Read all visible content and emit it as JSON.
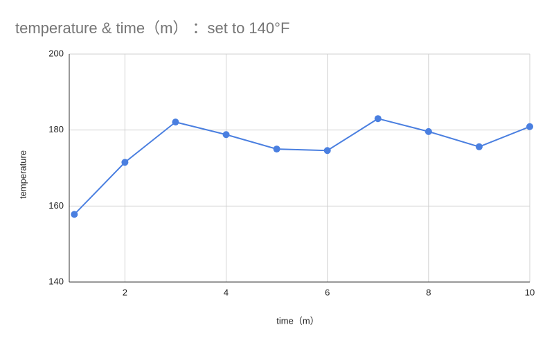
{
  "chart_data": {
    "type": "line",
    "title": "temperature & time（m） ：set to 140°F",
    "x_label": "time（m）",
    "y_label": "temperature",
    "x": [
      1,
      2,
      3,
      4,
      5,
      6,
      7,
      8,
      9,
      10
    ],
    "series": [
      {
        "name": "temperature",
        "color": "#4a7fe0",
        "values": [
          157.8,
          171.5,
          182.1,
          178.8,
          175.0,
          174.6,
          183.0,
          179.6,
          175.6,
          180.9
        ]
      }
    ],
    "xlim": [
      0.9,
      10
    ],
    "xticks": [
      2,
      4,
      6,
      8,
      10
    ],
    "ylim": [
      140,
      200
    ],
    "yticks": [
      140,
      160,
      180,
      200
    ],
    "grid": true
  }
}
